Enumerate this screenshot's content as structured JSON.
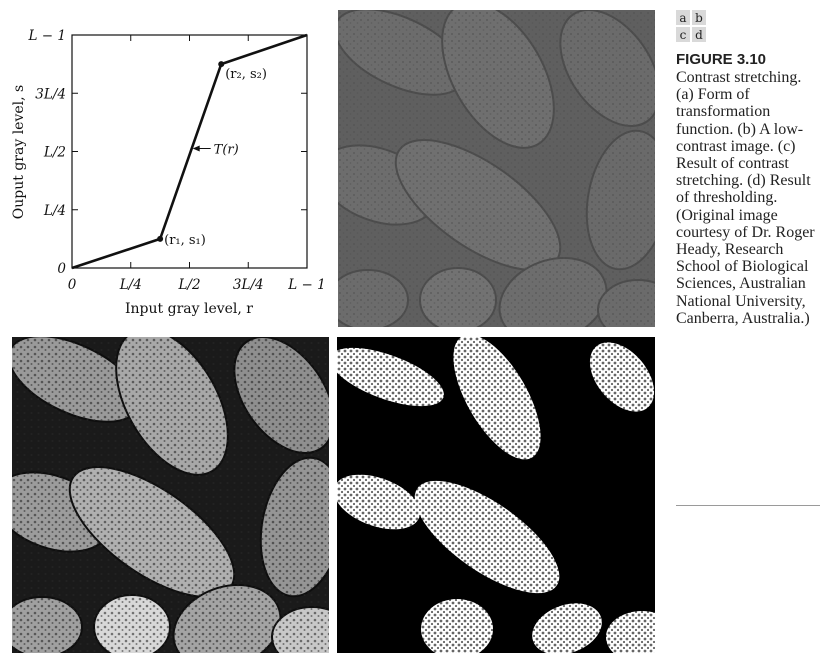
{
  "chart_data": {
    "type": "line",
    "x_tick_labels": [
      "0",
      "L/4",
      "L/2",
      "3L/4",
      "L − 1"
    ],
    "y_tick_labels": [
      "0",
      "L/4",
      "L/2",
      "3L/4",
      "L − 1"
    ],
    "xlabel": "Input gray level, r",
    "ylabel": "Ouput gray level, s",
    "xlim": [
      0,
      1
    ],
    "ylim": [
      0,
      1
    ],
    "grid": false,
    "series": [
      {
        "x": [
          0,
          0.375,
          0.635,
          1
        ],
        "y": [
          0,
          0.125,
          0.875,
          1
        ]
      }
    ],
    "point_labels": [
      "(r₁, s₁)",
      "(r₂, s₂)"
    ],
    "curve_label": "T(r)"
  },
  "panels": {
    "b": {
      "description_tone": "low-contrast"
    },
    "c": {
      "description_tone": "contrast-stretched"
    },
    "d": {
      "description_tone": "thresholded"
    }
  },
  "caption": {
    "layout_letters": [
      "a",
      "b",
      "c",
      "d"
    ],
    "figure_label": "FIGURE 3.10",
    "text": "Contrast stretching. (a) Form of transformation function. (b) A low-contrast image. (c) Result of contrast stretching. (d) Result of thresholding. (Original image courtesy of Dr. Roger Heady, Research School of Biological Sciences, Australian National University, Canberra, Australia.)"
  }
}
